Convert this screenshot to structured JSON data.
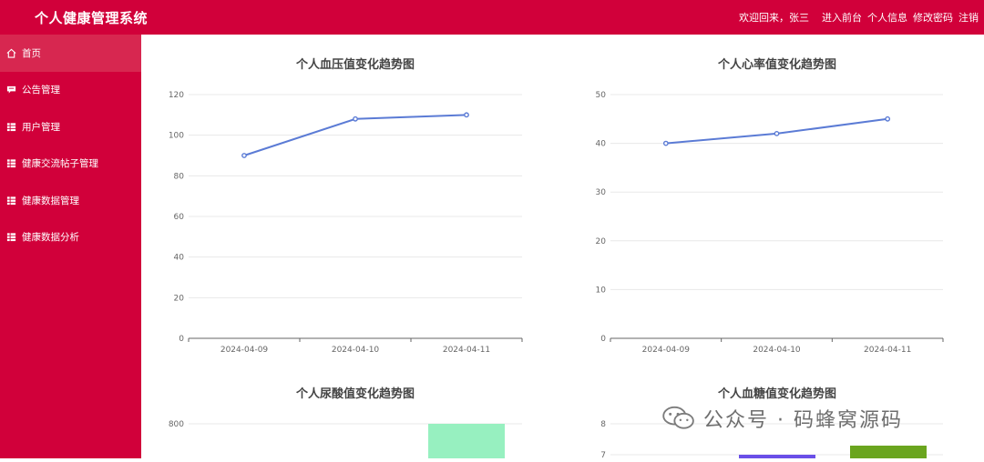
{
  "app": {
    "title": "个人健康管理系统"
  },
  "header": {
    "welcome": "欢迎回来，张三",
    "links": [
      "进入前台",
      "个人信息",
      "修改密码",
      "注销"
    ]
  },
  "sidebar": {
    "items": [
      {
        "label": "首页",
        "icon": "home-icon",
        "active": true
      },
      {
        "label": "公告管理",
        "icon": "message-icon",
        "active": false
      },
      {
        "label": "用户管理",
        "icon": "grid-icon",
        "active": false
      },
      {
        "label": "健康交流帖子管理",
        "icon": "grid-icon",
        "active": false
      },
      {
        "label": "健康数据管理",
        "icon": "grid-icon",
        "active": false
      },
      {
        "label": "健康数据分析",
        "icon": "grid-icon",
        "active": false
      }
    ]
  },
  "watermark": {
    "text": "公众号 · 码蜂窝源码"
  },
  "chart_data": [
    {
      "type": "line",
      "title": "个人血压值变化趋势图",
      "categories": [
        "2024-04-09",
        "2024-04-10",
        "2024-04-11"
      ],
      "values": [
        90,
        108,
        110
      ],
      "ylim": [
        0,
        120
      ],
      "yticks": [
        "0",
        "20",
        "40",
        "60",
        "80",
        "100",
        "120"
      ],
      "grid": true,
      "color": "#5b7bd5"
    },
    {
      "type": "line",
      "title": "个人心率值变化趋势图",
      "categories": [
        "2024-04-09",
        "2024-04-10",
        "2024-04-11"
      ],
      "values": [
        40,
        42,
        45
      ],
      "ylim": [
        0,
        50
      ],
      "yticks": [
        "0",
        "10",
        "20",
        "30",
        "40",
        "50"
      ],
      "grid": true,
      "color": "#5b7bd5"
    },
    {
      "type": "bar",
      "title": "个人尿酸值变化趋势图",
      "yticks": [
        "800"
      ],
      "grid": true,
      "color": "#97f0c0"
    },
    {
      "type": "bar",
      "title": "个人血糖值变化趋势图",
      "yticks": [
        "7",
        "8"
      ],
      "grid": true,
      "colors": [
        "#6a4fe8",
        "#6aa51e"
      ]
    }
  ]
}
